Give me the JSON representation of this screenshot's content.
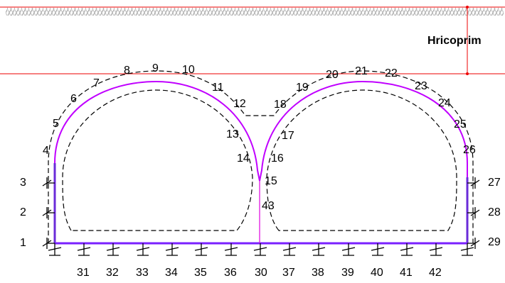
{
  "depth_label": "Hricoprim",
  "nodes": [
    "1",
    "2",
    "3",
    "4",
    "5",
    "6",
    "7",
    "8",
    "9",
    "10",
    "11",
    "12",
    "13",
    "14",
    "15",
    "16",
    "17",
    "18",
    "19",
    "20",
    "21",
    "22",
    "23",
    "24",
    "25",
    "26",
    "27",
    "28",
    "29",
    "30",
    "31",
    "32",
    "33",
    "34",
    "35",
    "36",
    "37",
    "38",
    "39",
    "40",
    "41",
    "42",
    "43"
  ]
}
